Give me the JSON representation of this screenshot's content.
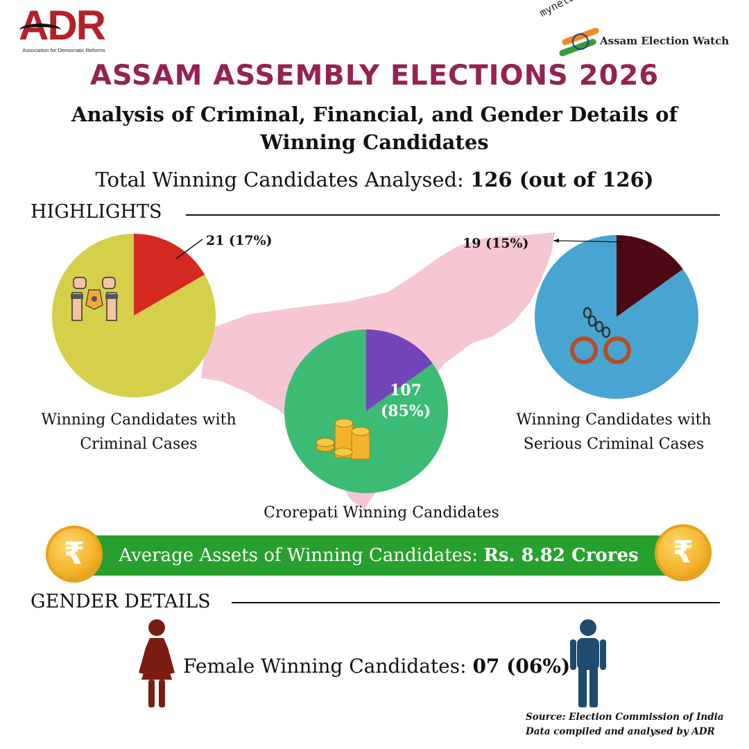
{
  "logos": {
    "adr_text": "ADR",
    "adr_subtitle": "Association for Democratic Reforms",
    "myneta_wordmark": "myneta.info",
    "myneta_text": "Assam Election Watch"
  },
  "header": {
    "title": "ASSAM ASSEMBLY ELECTIONS 2026",
    "subtitle": "Analysis of Criminal, Financial, and Gender Details of Winning Candidates",
    "total_label": "Total Winning Candidates Analysed:",
    "total_value": "126 (out of 126)"
  },
  "sections": {
    "highlights": "HIGHLIGHTS",
    "gender": "GENDER DETAILS"
  },
  "chart_data": [
    {
      "type": "pie",
      "title": "Winning Candidates with Criminal Cases",
      "slices": [
        {
          "label": "Winning Candidates with Criminal Cases",
          "value": 21,
          "percent": 17,
          "color": "#d42a22",
          "display": "21 (17%)"
        },
        {
          "label": "Other",
          "value": 105,
          "percent": 83,
          "color": "#d4d04a"
        }
      ],
      "icon": "handcuffed-hands-icon"
    },
    {
      "type": "pie",
      "title": "Crorepati Winning Candidates",
      "slices": [
        {
          "label": "Crorepati Winning Candidates",
          "value": 107,
          "percent": 85,
          "color": "#3cbb74",
          "display_value": "107",
          "display_percent": "(85%)"
        },
        {
          "label": "Other",
          "value": 19,
          "percent": 15,
          "color": "#7245b8"
        }
      ],
      "icon": "coin-stack-icon"
    },
    {
      "type": "pie",
      "title": "Winning Candidates with Serious Criminal Cases",
      "slices": [
        {
          "label": "Winning Candidates with Serious Criminal Cases",
          "value": 19,
          "percent": 15,
          "color": "#4e0a14",
          "display": "19 (15%)"
        },
        {
          "label": "Other",
          "value": 107,
          "percent": 85,
          "color": "#48a4d0"
        }
      ],
      "icon": "handcuffs-icon"
    }
  ],
  "assets": {
    "label": "Average Assets of Winning Candidates:",
    "value": "Rs. 8.82 Crores",
    "coin_symbol": "₹"
  },
  "gender": {
    "female_label": "Female Winning Candidates:",
    "female_value": "07 (06%)"
  },
  "source": {
    "line1": "Source: Election Commission of India",
    "line2": "Data compiled and analysed by ADR"
  },
  "colors": {
    "title": "#952252",
    "banner": "#27a02d",
    "map": "#f6c6d3",
    "female_icon": "#7a1c12",
    "male_icon": "#1f4b6e"
  }
}
